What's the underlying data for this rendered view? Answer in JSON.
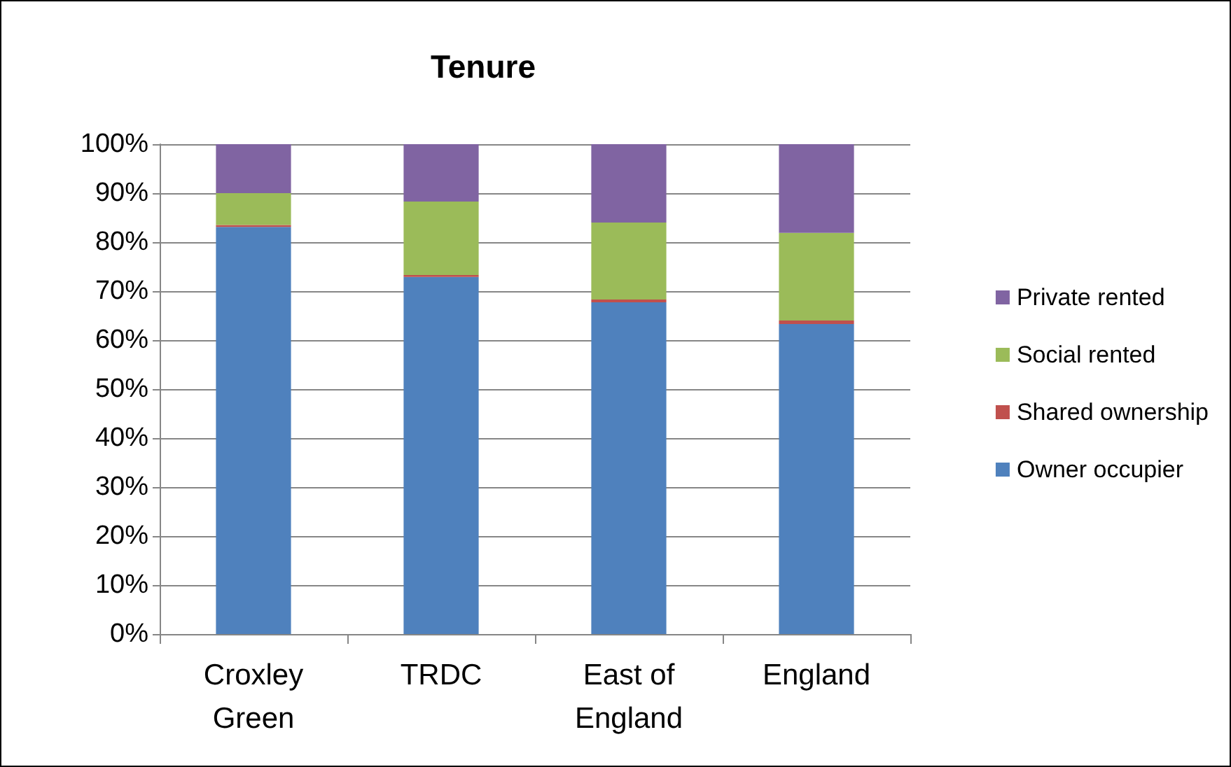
{
  "chart_data": {
    "type": "bar",
    "title": "Tenure",
    "stacked": true,
    "categories": [
      "Croxley\nGreen",
      "TRDC",
      "East of\nEngland",
      "England"
    ],
    "series": [
      {
        "name": "Owner occupier",
        "color": "#4f81bd",
        "values": [
          83.1,
          72.9,
          67.7,
          63.3
        ]
      },
      {
        "name": "Shared ownership",
        "color": "#c0504d",
        "values": [
          0.4,
          0.4,
          0.6,
          0.7
        ]
      },
      {
        "name": "Social rented",
        "color": "#9bbb59",
        "values": [
          6.5,
          15,
          15.7,
          17.9
        ]
      },
      {
        "name": "Private rented",
        "color": "#8064a2",
        "values": [
          10,
          11.7,
          16,
          18.1
        ]
      }
    ],
    "ylim": [
      0,
      100
    ],
    "yticks": [
      {
        "value": 0,
        "label": "0%"
      },
      {
        "value": 10,
        "label": "10%"
      },
      {
        "value": 20,
        "label": "20%"
      },
      {
        "value": 30,
        "label": "30%"
      },
      {
        "value": 40,
        "label": "40%"
      },
      {
        "value": 50,
        "label": "50%"
      },
      {
        "value": 60,
        "label": "60%"
      },
      {
        "value": 70,
        "label": "70%"
      },
      {
        "value": 80,
        "label": "80%"
      },
      {
        "value": 90,
        "label": "90%"
      },
      {
        "value": 100,
        "label": "100%"
      }
    ],
    "grid": "y",
    "legend": "right"
  }
}
